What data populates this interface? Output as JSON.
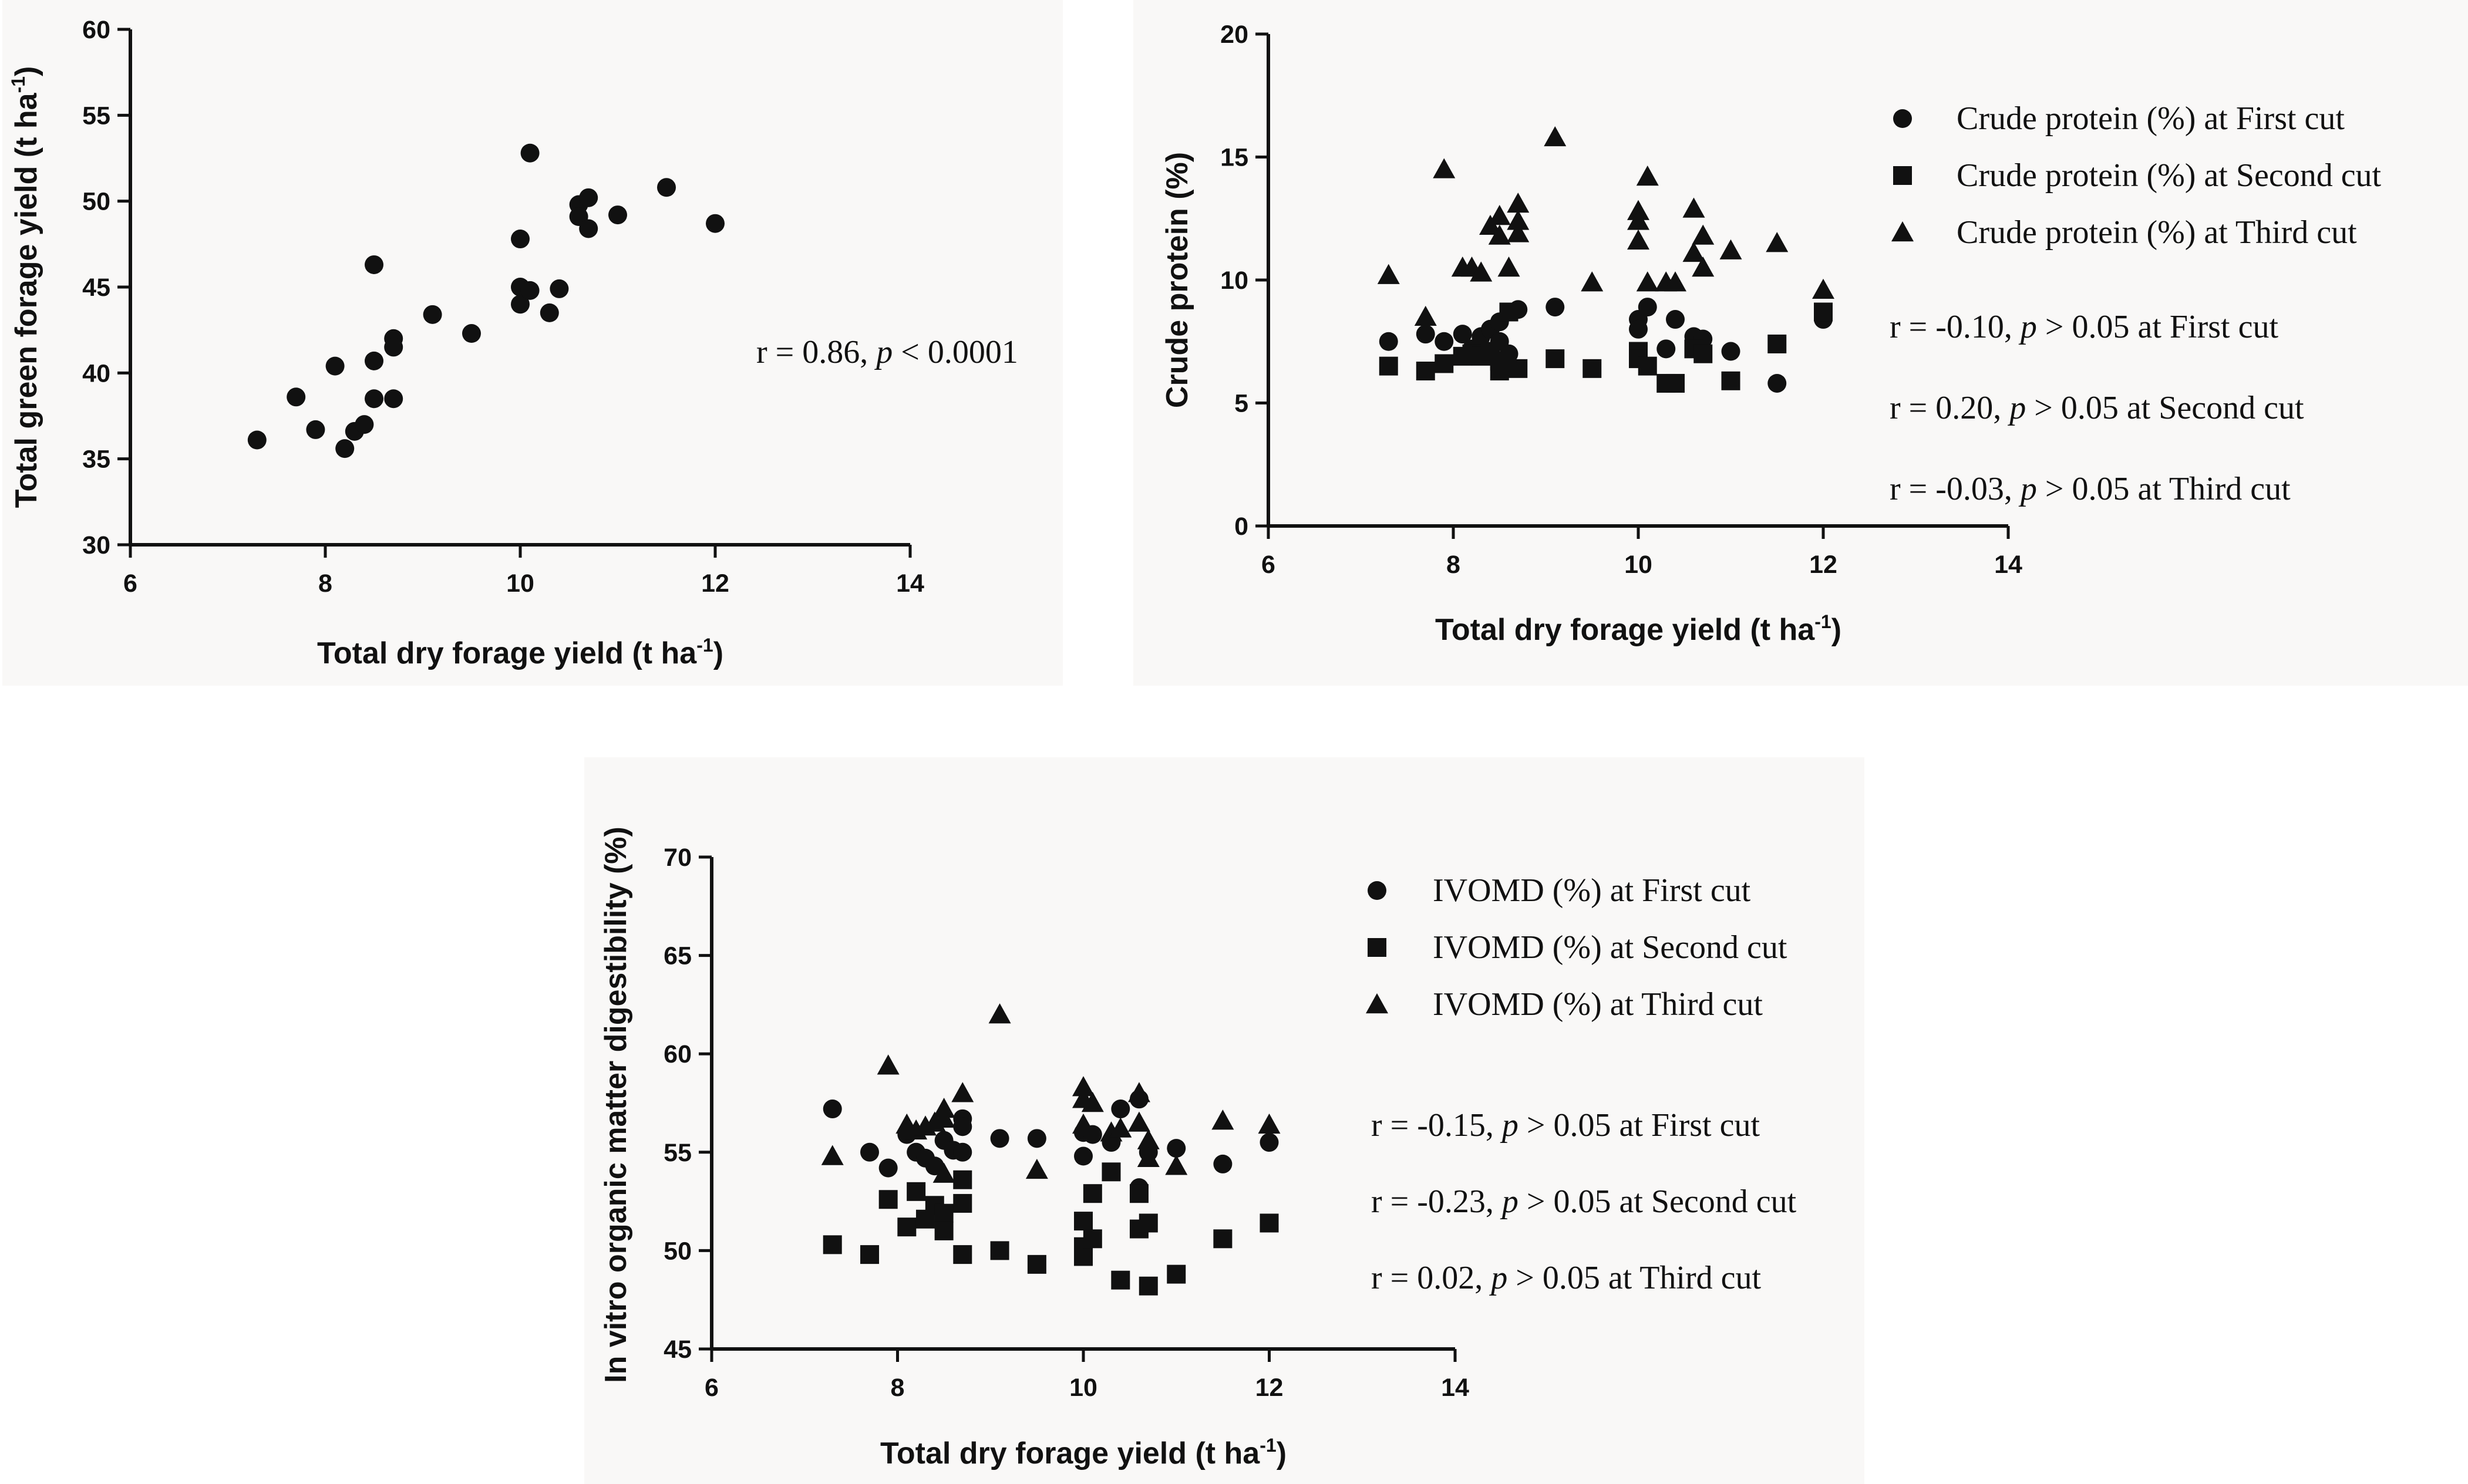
{
  "chart_data": [
    {
      "id": "a",
      "type": "scatter",
      "xlabel": "Total dry forage yield (t ha",
      "xlabel_sup": "-1",
      "xlabel_tail": ")",
      "ylabel": "Total green forage yield (t ha",
      "ylabel_sup": "-1",
      "ylabel_tail": ")",
      "xlim": [
        6,
        14
      ],
      "ylim": [
        30,
        60
      ],
      "xticks": [
        6,
        8,
        10,
        12,
        14
      ],
      "yticks": [
        30,
        35,
        40,
        45,
        50,
        55,
        60
      ],
      "series": [
        {
          "name": "Total green forage yield",
          "marker": "circle",
          "points": [
            [
              7.3,
              36.1
            ],
            [
              7.7,
              38.6
            ],
            [
              7.9,
              36.7
            ],
            [
              8.1,
              40.4
            ],
            [
              8.2,
              35.6
            ],
            [
              8.3,
              36.6
            ],
            [
              8.4,
              37.0
            ],
            [
              8.5,
              46.3
            ],
            [
              8.5,
              40.7
            ],
            [
              8.5,
              38.5
            ],
            [
              8.7,
              42.0
            ],
            [
              8.7,
              41.5
            ],
            [
              8.7,
              38.5
            ],
            [
              9.1,
              43.4
            ],
            [
              9.5,
              42.3
            ],
            [
              10.0,
              47.8
            ],
            [
              10.0,
              45.0
            ],
            [
              10.0,
              44.0
            ],
            [
              10.1,
              52.8
            ],
            [
              10.1,
              44.8
            ],
            [
              10.3,
              43.5
            ],
            [
              10.4,
              44.9
            ],
            [
              10.6,
              49.8
            ],
            [
              10.6,
              49.1
            ],
            [
              10.7,
              50.2
            ],
            [
              10.7,
              48.4
            ],
            [
              11.0,
              49.2
            ],
            [
              11.5,
              50.8
            ],
            [
              12.0,
              48.7
            ]
          ]
        }
      ],
      "annotations": [
        {
          "pre": "r = 0.86, ",
          "ital": "p",
          "post": " < 0.0001"
        }
      ]
    },
    {
      "id": "b",
      "type": "scatter",
      "xlabel": "Total dry forage yield (t ha",
      "xlabel_sup": "-1",
      "xlabel_tail": ")",
      "ylabel": "Crude protein (%)",
      "xlim": [
        6,
        14
      ],
      "ylim": [
        0,
        20
      ],
      "xticks": [
        6,
        8,
        10,
        12,
        14
      ],
      "yticks": [
        0,
        5,
        10,
        15,
        20
      ],
      "series": [
        {
          "name": "Crude protein (%) at First cut",
          "marker": "circle",
          "points": [
            [
              7.3,
              7.5
            ],
            [
              7.7,
              7.8
            ],
            [
              7.9,
              7.5
            ],
            [
              8.1,
              7.8
            ],
            [
              8.2,
              7.2
            ],
            [
              8.3,
              7.7
            ],
            [
              8.4,
              8.0
            ],
            [
              8.5,
              8.3
            ],
            [
              8.5,
              7.5
            ],
            [
              8.6,
              7.0
            ],
            [
              8.7,
              8.8
            ],
            [
              9.1,
              8.9
            ],
            [
              10.0,
              8.4
            ],
            [
              10.0,
              8.0
            ],
            [
              10.1,
              8.9
            ],
            [
              10.3,
              7.2
            ],
            [
              10.4,
              8.4
            ],
            [
              10.6,
              7.7
            ],
            [
              10.7,
              7.6
            ],
            [
              11.0,
              7.1
            ],
            [
              11.5,
              5.8
            ],
            [
              12.0,
              8.4
            ]
          ]
        },
        {
          "name": "Crude protein (%) at Second cut",
          "marker": "square",
          "points": [
            [
              7.3,
              6.5
            ],
            [
              7.7,
              6.3
            ],
            [
              7.9,
              6.6
            ],
            [
              8.1,
              6.9
            ],
            [
              8.2,
              7.0
            ],
            [
              8.3,
              6.9
            ],
            [
              8.4,
              7.1
            ],
            [
              8.5,
              6.7
            ],
            [
              8.5,
              6.3
            ],
            [
              8.6,
              8.7
            ],
            [
              8.7,
              6.4
            ],
            [
              9.1,
              6.8
            ],
            [
              9.5,
              6.4
            ],
            [
              10.0,
              7.1
            ],
            [
              10.0,
              6.8
            ],
            [
              10.1,
              6.5
            ],
            [
              10.3,
              5.8
            ],
            [
              10.4,
              5.8
            ],
            [
              10.6,
              7.2
            ],
            [
              10.7,
              7.0
            ],
            [
              11.0,
              5.9
            ],
            [
              11.5,
              7.4
            ],
            [
              12.0,
              8.7
            ]
          ]
        },
        {
          "name": "Crude protein (%) at Third cut",
          "marker": "triangle",
          "points": [
            [
              7.3,
              10.2
            ],
            [
              7.7,
              8.5
            ],
            [
              7.9,
              14.5
            ],
            [
              8.1,
              10.5
            ],
            [
              8.2,
              10.5
            ],
            [
              8.3,
              10.3
            ],
            [
              8.4,
              12.2
            ],
            [
              8.5,
              12.6
            ],
            [
              8.5,
              11.8
            ],
            [
              8.6,
              10.5
            ],
            [
              8.7,
              13.1
            ],
            [
              8.7,
              12.4
            ],
            [
              8.7,
              11.9
            ],
            [
              9.1,
              15.8
            ],
            [
              9.5,
              9.9
            ],
            [
              10.0,
              12.8
            ],
            [
              10.0,
              12.4
            ],
            [
              10.0,
              11.6
            ],
            [
              10.1,
              14.2
            ],
            [
              10.1,
              9.9
            ],
            [
              10.3,
              9.9
            ],
            [
              10.4,
              9.9
            ],
            [
              10.6,
              12.9
            ],
            [
              10.6,
              11.1
            ],
            [
              10.7,
              11.8
            ],
            [
              10.7,
              10.5
            ],
            [
              11.0,
              11.2
            ],
            [
              11.5,
              11.5
            ],
            [
              12.0,
              9.6
            ]
          ]
        }
      ],
      "annotations": [
        {
          "pre": "r = -0.10, ",
          "ital": "p",
          "post": " > 0.05 at First cut"
        },
        {
          "pre": "r = 0.20, ",
          "ital": "p",
          "post": " > 0.05 at Second cut"
        },
        {
          "pre": "r = -0.03, ",
          "ital": "p",
          "post": " > 0.05 at Third cut"
        }
      ]
    },
    {
      "id": "c",
      "type": "scatter",
      "xlabel": "Total dry forage yield (t ha",
      "xlabel_sup": "-1",
      "xlabel_tail": ")",
      "ylabel": "In vitro organic matter digestibility (%)",
      "xlim": [
        6,
        14
      ],
      "ylim": [
        45,
        70
      ],
      "xticks": [
        6,
        8,
        10,
        12,
        14
      ],
      "yticks": [
        45,
        50,
        55,
        60,
        65,
        70
      ],
      "series": [
        {
          "name": "IVOMD (%) at First cut",
          "marker": "circle",
          "points": [
            [
              7.3,
              57.2
            ],
            [
              7.7,
              55.0
            ],
            [
              7.9,
              54.2
            ],
            [
              8.1,
              55.9
            ],
            [
              8.2,
              55.0
            ],
            [
              8.3,
              54.7
            ],
            [
              8.4,
              54.3
            ],
            [
              8.5,
              55.6
            ],
            [
              8.6,
              55.1
            ],
            [
              8.7,
              56.7
            ],
            [
              8.7,
              56.3
            ],
            [
              8.7,
              55.0
            ],
            [
              9.1,
              55.7
            ],
            [
              9.5,
              55.7
            ],
            [
              10.0,
              56.0
            ],
            [
              10.0,
              54.8
            ],
            [
              10.1,
              55.9
            ],
            [
              10.3,
              55.5
            ],
            [
              10.4,
              57.2
            ],
            [
              10.6,
              57.7
            ],
            [
              10.6,
              53.2
            ],
            [
              10.7,
              55.0
            ],
            [
              11.0,
              55.2
            ],
            [
              11.5,
              54.4
            ],
            [
              12.0,
              55.5
            ]
          ]
        },
        {
          "name": "IVOMD (%) at Second cut",
          "marker": "square",
          "points": [
            [
              7.3,
              50.3
            ],
            [
              7.7,
              49.8
            ],
            [
              7.9,
              52.6
            ],
            [
              8.1,
              51.2
            ],
            [
              8.2,
              53.0
            ],
            [
              8.3,
              51.6
            ],
            [
              8.4,
              52.3
            ],
            [
              8.5,
              51.9
            ],
            [
              8.5,
              51.0
            ],
            [
              8.7,
              53.6
            ],
            [
              8.7,
              52.4
            ],
            [
              8.7,
              49.8
            ],
            [
              9.1,
              50.0
            ],
            [
              9.5,
              49.3
            ],
            [
              10.0,
              51.5
            ],
            [
              10.0,
              50.2
            ],
            [
              10.0,
              49.7
            ],
            [
              10.1,
              50.6
            ],
            [
              10.1,
              52.9
            ],
            [
              10.3,
              54.0
            ],
            [
              10.4,
              48.5
            ],
            [
              10.6,
              52.9
            ],
            [
              10.6,
              51.1
            ],
            [
              10.7,
              48.2
            ],
            [
              10.7,
              51.4
            ],
            [
              11.0,
              48.8
            ],
            [
              11.5,
              50.6
            ],
            [
              12.0,
              51.4
            ]
          ]
        },
        {
          "name": "IVOMD (%) at Third cut",
          "marker": "triangle",
          "points": [
            [
              7.3,
              54.8
            ],
            [
              7.9,
              59.4
            ],
            [
              8.1,
              56.4
            ],
            [
              8.2,
              56.1
            ],
            [
              8.3,
              56.3
            ],
            [
              8.4,
              56.5
            ],
            [
              8.5,
              57.2
            ],
            [
              8.5,
              56.7
            ],
            [
              8.5,
              53.9
            ],
            [
              8.7,
              58.0
            ],
            [
              9.1,
              62.0
            ],
            [
              9.5,
              54.1
            ],
            [
              10.0,
              58.3
            ],
            [
              10.0,
              57.7
            ],
            [
              10.0,
              56.4
            ],
            [
              10.1,
              57.5
            ],
            [
              10.3,
              56.0
            ],
            [
              10.4,
              56.2
            ],
            [
              10.6,
              58.0
            ],
            [
              10.6,
              56.5
            ],
            [
              10.7,
              55.6
            ],
            [
              10.7,
              54.7
            ],
            [
              11.0,
              54.3
            ],
            [
              11.5,
              56.6
            ],
            [
              12.0,
              56.4
            ]
          ]
        }
      ],
      "annotations": [
        {
          "pre": "r = -0.15, ",
          "ital": "p",
          "post": " > 0.05 at First cut"
        },
        {
          "pre": "r = -0.23, ",
          "ital": "p",
          "post": " > 0.05 at Second cut"
        },
        {
          "pre": "r = 0.02, ",
          "ital": "p",
          "post": " > 0.05 at Third cut"
        }
      ]
    }
  ]
}
